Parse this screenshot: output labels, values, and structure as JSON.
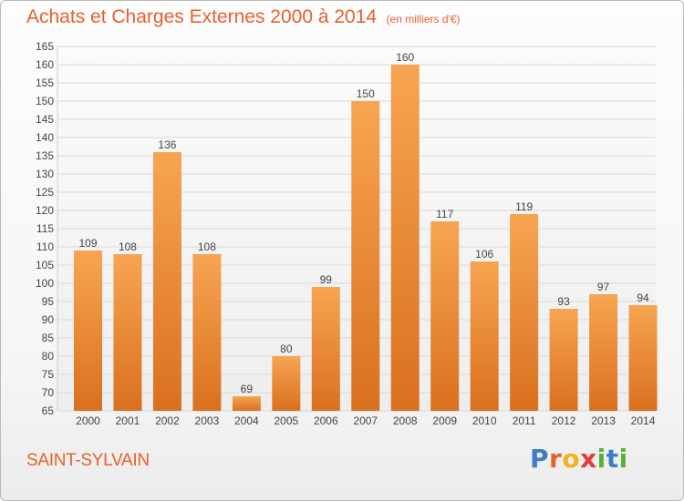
{
  "title": "Achats et Charges Externes 2000 à 2014",
  "subtitle": "(en milliers d'€)",
  "commune": "SAINT-SYLVAIN",
  "logo": {
    "letters": [
      "P",
      "r",
      "o",
      "x",
      "i",
      "t",
      "i"
    ],
    "colors": [
      "#3a7fc4",
      "#e8602c",
      "#f2b21c",
      "#e33a3a",
      "#5bb033",
      "#3a7fc4",
      "#5bb033"
    ]
  },
  "colors": {
    "bar_top": "#f7a552",
    "bar_bottom": "#d9701f",
    "grid": "#d8d8d8",
    "axis_text": "#444444",
    "title": "#e8602c"
  },
  "chart_data": {
    "type": "bar",
    "title": "Achats et Charges Externes 2000 à 2014",
    "subtitle": "(en milliers d'€)",
    "categories": [
      "2000",
      "2001",
      "2002",
      "2003",
      "2004",
      "2005",
      "2006",
      "2007",
      "2008",
      "2009",
      "2010",
      "2011",
      "2012",
      "2013",
      "2014"
    ],
    "values": [
      109,
      108,
      136,
      108,
      69,
      80,
      99,
      150,
      160,
      117,
      106,
      119,
      93,
      97,
      94
    ],
    "ylim": [
      65,
      165
    ],
    "yticks": [
      65,
      70,
      75,
      80,
      85,
      90,
      95,
      100,
      105,
      110,
      115,
      120,
      125,
      130,
      135,
      140,
      145,
      150,
      155,
      160,
      165
    ],
    "grid": true,
    "legend": "none"
  }
}
